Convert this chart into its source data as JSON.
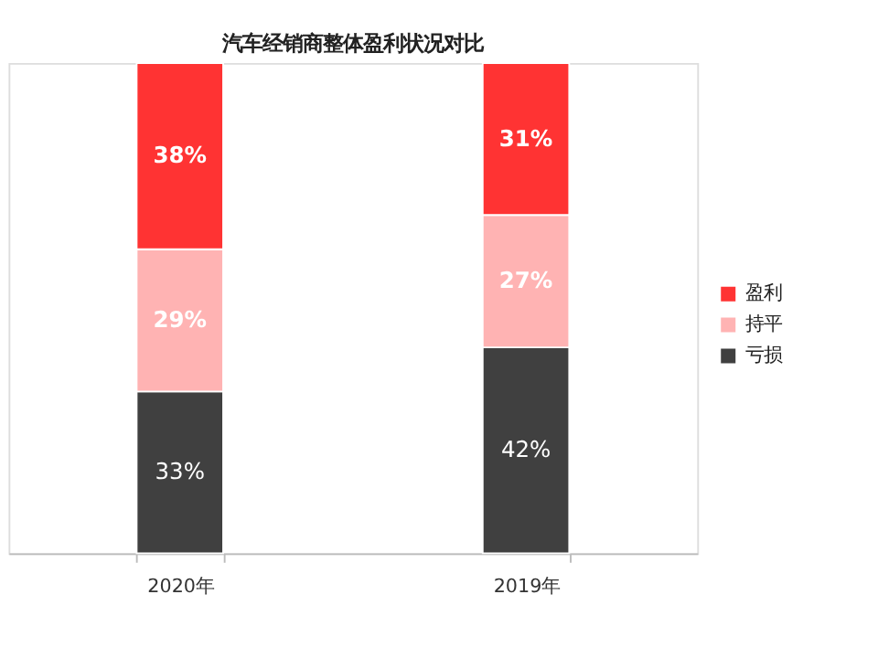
{
  "chart_data": {
    "type": "bar",
    "title": "汽车经销商整体盈利状况对比",
    "stacked": true,
    "legend": "right",
    "grid": false,
    "categories": [
      "2020年",
      "2019年"
    ],
    "series": [
      {
        "name": "亏损",
        "color": "#404040",
        "values": [
          33,
          42
        ],
        "value_labels": [
          "33%",
          "42%"
        ]
      },
      {
        "name": "持平",
        "color": "#ffb3b3",
        "values": [
          29,
          27
        ],
        "value_labels": [
          "29%",
          "27%"
        ]
      },
      {
        "name": "盈利",
        "color": "#ff3333",
        "values": [
          38,
          31
        ],
        "value_labels": [
          "38%",
          "31%"
        ]
      }
    ]
  }
}
